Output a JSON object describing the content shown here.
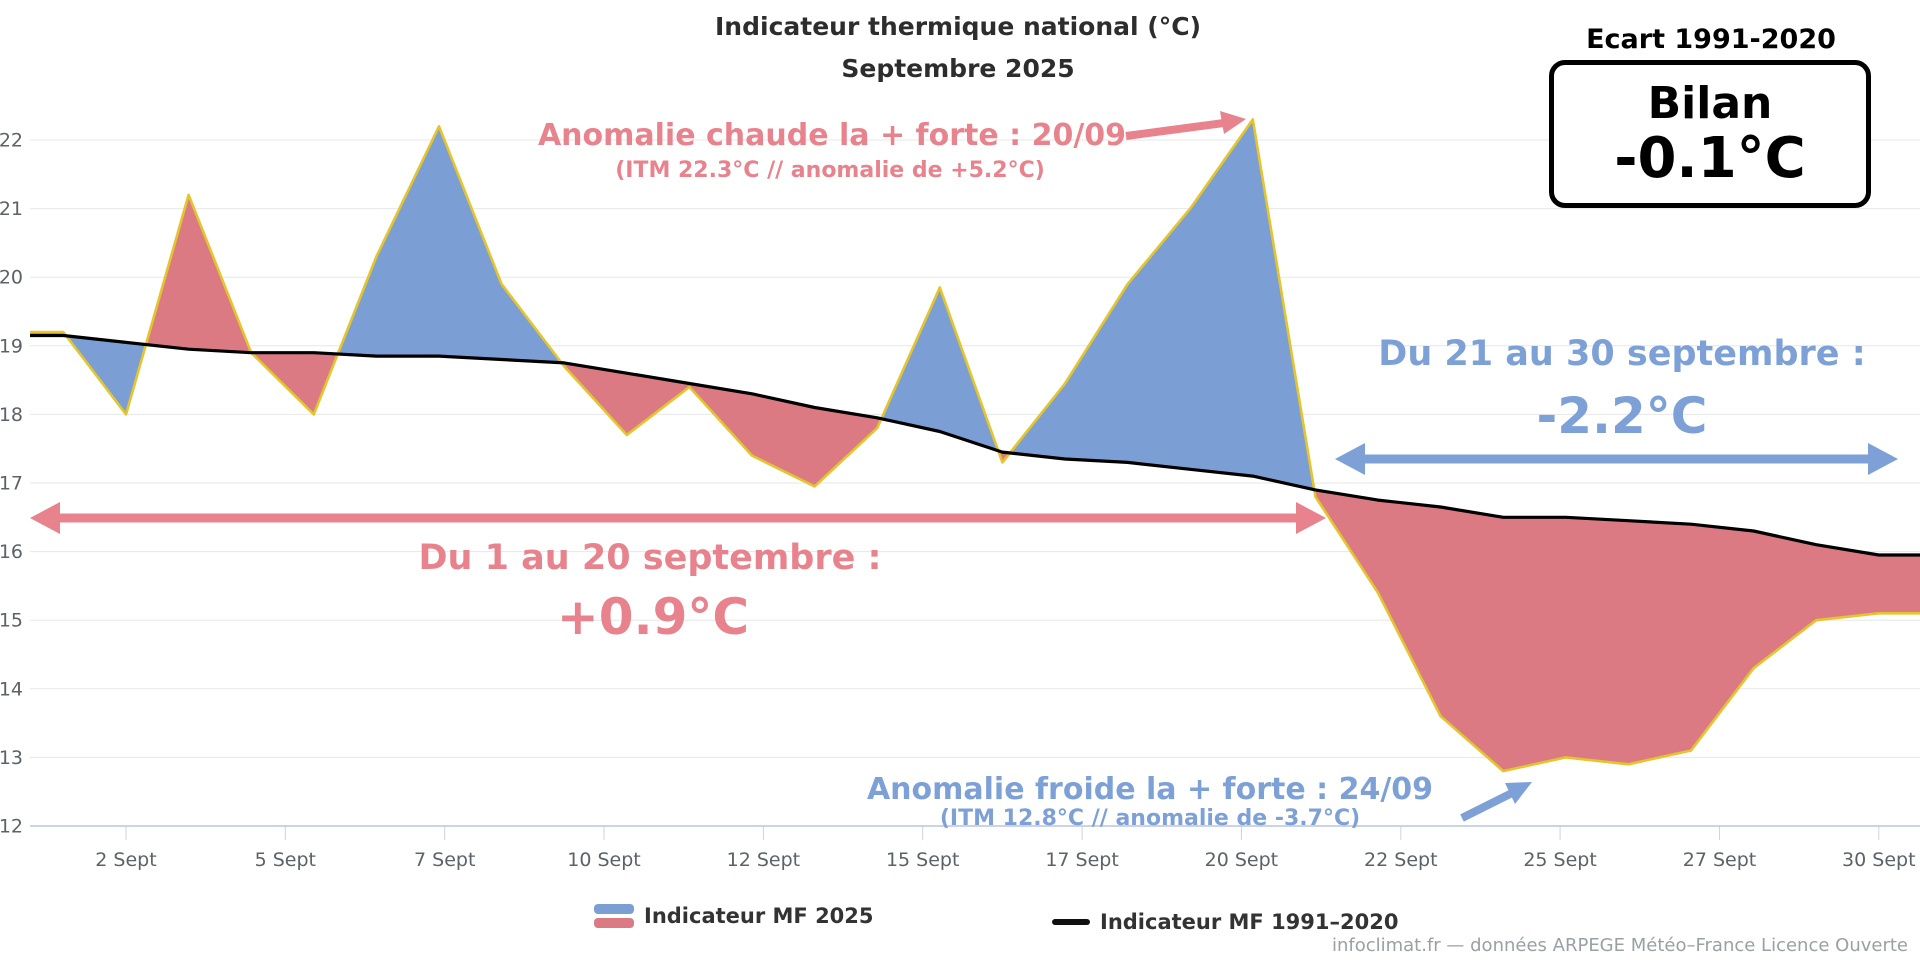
{
  "title": {
    "line1": "Indicateur thermique national (°C)",
    "line2": "Septembre 2025"
  },
  "bilan": {
    "header": "Ecart 1991-2020",
    "label": "Bilan",
    "value": "-0.1°C"
  },
  "annotations": {
    "warm": {
      "line1": "Anomalie chaude la + forte : 20/09",
      "line2": "(ITM 22.3°C // anomalie de +5.2°C)"
    },
    "cold": {
      "line1": "Anomalie froide la + forte : 24/09",
      "line2": "(ITM 12.8°C // anomalie de -3.7°C)"
    },
    "period1": {
      "label": "Du 1 au 20 septembre :",
      "value": "+0.9°C"
    },
    "period2": {
      "label": "Du 21 au 30 septembre :",
      "value": "-2.2°C"
    }
  },
  "legend": [
    {
      "label": "Indicateur MF 2025",
      "swatch": "area-blue-pink"
    },
    {
      "label": "Indicateur MF 1991–2020",
      "swatch": "black-line"
    }
  ],
  "footer": {
    "credit": "infoclimat.fr — données ARPEGE Météo–France Licence Ouverte"
  },
  "colors": {
    "warm_fill": "#dc7a84",
    "cold_fill": "#7b9fd5",
    "warm_text": "#e8838d",
    "cold_text": "#7da1d7",
    "line_2025": "#e4c52e",
    "line_normal": "#000000"
  },
  "chart_data": {
    "type": "area",
    "title": "Indicateur thermique national (°C) — Septembre 2025",
    "x": [
      1,
      2,
      3,
      4,
      5,
      6,
      7,
      8,
      9,
      10,
      11,
      12,
      13,
      14,
      15,
      16,
      17,
      18,
      19,
      20,
      21,
      22,
      23,
      24,
      25,
      26,
      27,
      28,
      29,
      30
    ],
    "series": [
      {
        "name": "Indicateur MF 2025",
        "values": [
          19.2,
          18.0,
          21.2,
          18.9,
          18.0,
          20.3,
          22.2,
          19.9,
          18.7,
          17.7,
          18.4,
          17.4,
          16.95,
          17.8,
          19.85,
          17.3,
          18.45,
          19.9,
          21.0,
          22.3,
          16.8,
          15.4,
          13.6,
          12.8,
          13.0,
          12.9,
          13.1,
          14.3,
          15.0,
          15.1
        ]
      },
      {
        "name": "Indicateur MF 1991-2020",
        "values": [
          19.15,
          19.05,
          18.95,
          18.9,
          18.9,
          18.85,
          18.85,
          18.8,
          18.75,
          18.6,
          18.45,
          18.3,
          18.1,
          17.95,
          17.75,
          17.45,
          17.35,
          17.3,
          17.2,
          17.1,
          16.9,
          16.75,
          16.65,
          16.5,
          16.5,
          16.45,
          16.4,
          16.3,
          16.1,
          15.95
        ]
      }
    ],
    "xlabel": "",
    "ylabel": "",
    "ylim": [
      12,
      22
    ],
    "yticks": [
      12,
      13,
      14,
      15,
      16,
      17,
      18,
      19,
      20,
      21,
      22
    ],
    "xtick_labels": [
      "2 Sept",
      "5 Sept",
      "7 Sept",
      "10 Sept",
      "12 Sept",
      "15 Sept",
      "17 Sept",
      "20 Sept",
      "22 Sept",
      "25 Sept",
      "27 Sept",
      "30 Sept"
    ],
    "grid": "horizontal",
    "legend_position": "bottom",
    "notes": {
      "mean_anomaly_sep1_20": "+0.9°C",
      "mean_anomaly_sep21_30": "-2.2°C",
      "monthly_balance_vs_1991_2020": "-0.1°C",
      "warmest_anomaly_day": "20/09 (ITM 22.3°C, +5.2°C)",
      "coldest_anomaly_day": "24/09 (ITM 12.8°C, -3.7°C)"
    }
  }
}
